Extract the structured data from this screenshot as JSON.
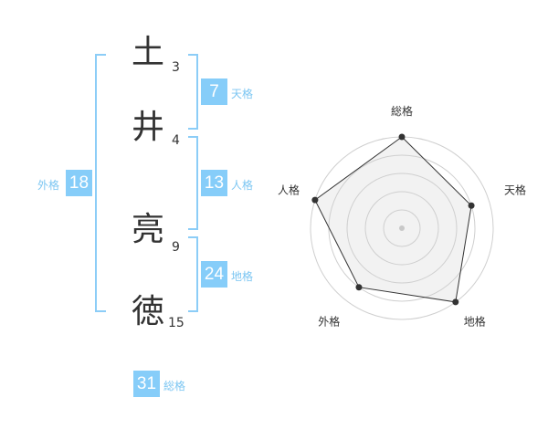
{
  "name": {
    "chars": [
      {
        "char": "土",
        "strokes": "3"
      },
      {
        "char": "井",
        "strokes": "4"
      },
      {
        "char": "亮",
        "strokes": "9"
      },
      {
        "char": "徳",
        "strokes": "15"
      }
    ]
  },
  "kaku": {
    "tenkaku": {
      "value": "7",
      "label": "天格"
    },
    "jinkaku": {
      "value": "13",
      "label": "人格"
    },
    "chikaku": {
      "value": "24",
      "label": "地格"
    },
    "gaikaku": {
      "value": "18",
      "label": "外格"
    },
    "soukaku": {
      "value": "31",
      "label": "総格"
    }
  },
  "colors": {
    "accent": "#86cdf9",
    "bracket": "#8ccdf7",
    "label": "#7cc6f2"
  },
  "chart_data": {
    "type": "radar",
    "axes": [
      "総格",
      "天格",
      "地格",
      "外格",
      "人格"
    ],
    "values": [
      5,
      4,
      5,
      4,
      5
    ],
    "range": [
      0,
      5
    ],
    "rings": 5
  }
}
